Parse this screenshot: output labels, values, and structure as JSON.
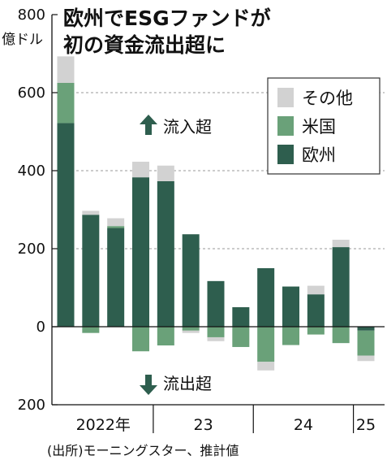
{
  "chart_data": {
    "type": "bar",
    "stacked": true,
    "title_lines": [
      "欧州でESGファンドが",
      "初の資金流出超に"
    ],
    "unit": "億ドル",
    "ylim": [
      -200,
      800
    ],
    "yticks": [
      800,
      600,
      400,
      200,
      0,
      -200
    ],
    "ytick_labels": [
      "800",
      "600",
      "400",
      "200",
      "0",
      "200"
    ],
    "grid": true,
    "categories": [
      "2022Q1",
      "2022Q2",
      "2022Q3",
      "2022Q4",
      "2023Q1",
      "2023Q2",
      "2023Q3",
      "2023Q4",
      "2024Q1",
      "2024Q2",
      "2024Q3",
      "2024Q4",
      "2025Q1"
    ],
    "x_group_labels": [
      {
        "label": "2022年",
        "start": 0,
        "end": 3
      },
      {
        "label": "23",
        "start": 4,
        "end": 7
      },
      {
        "label": "24",
        "start": 8,
        "end": 11
      },
      {
        "label": "25",
        "start": 12,
        "end": 12
      }
    ],
    "series": [
      {
        "name": "欧州",
        "color": "#2e5e4e",
        "values": [
          522,
          287,
          253,
          383,
          373,
          237,
          117,
          50,
          150,
          103,
          83,
          204,
          -10
        ]
      },
      {
        "name": "米国",
        "color": "#6aa179",
        "values": [
          103,
          -16,
          5,
          -63,
          -48,
          -10,
          -27,
          -52,
          -90,
          -47,
          -20,
          -42,
          -64
        ]
      },
      {
        "name": "その他",
        "color": "#d2d2d2",
        "values": [
          68,
          10,
          20,
          40,
          40,
          -6,
          -10,
          0,
          -22,
          0,
          22,
          19,
          -14
        ]
      }
    ],
    "legend": {
      "position": "top-right",
      "order": [
        "その他",
        "米国",
        "欧州"
      ]
    },
    "annotations": {
      "inflow": "流入超",
      "outflow": "流出超"
    },
    "source": "(出所)モーニングスター、推計値"
  }
}
